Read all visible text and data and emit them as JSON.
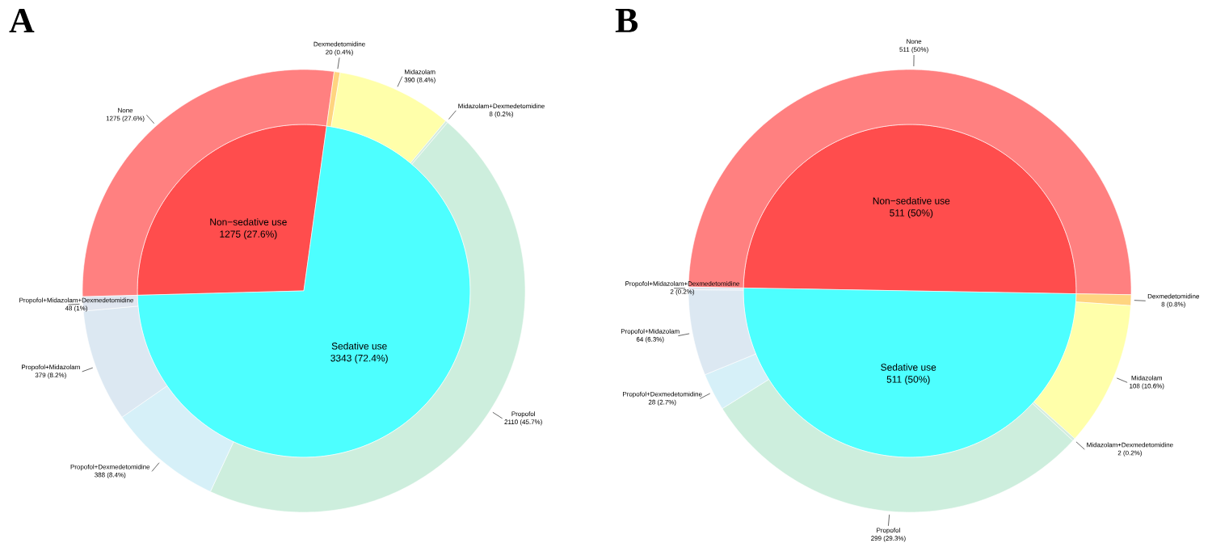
{
  "chart_data": [
    {
      "type": "pie",
      "categories": [
        "Non−sedative use",
        "Sedative use"
      ],
      "values": [
        1275,
        3343
      ],
      "colors": [
        "#ff4d4d",
        "#4dffff"
      ],
      "value_labels": [
        "1275 (27.6%)",
        "3343 (72.4%)"
      ]
    },
    {
      "type": "donut",
      "title": "A",
      "categories": [
        "None",
        "Dexmedetomidine",
        "Midazolam",
        "Midazolam+Dexmedetomidine",
        "Propofol",
        "Propofol+Dexmedetomidine",
        "Propofol+Midazolam",
        "Propofol+Midazolam+Dexmedetomidine"
      ],
      "values": [
        1275,
        20,
        390,
        8,
        2110,
        388,
        379,
        48
      ],
      "colors": [
        "#ff8080",
        "#ffd480",
        "#ffffaa",
        "#d4ecdf",
        "#cdeedd",
        "#d6f0f8",
        "#dce8f2",
        "#e0e6f0"
      ],
      "value_labels": [
        "1275 (27.6%)",
        "20 (0.4%)",
        "390 (8.4%)",
        "8 (0.2%)",
        "2110 (45.7%)",
        "388 (8.4%)",
        "379 (8.2%)",
        "48 (1%)"
      ]
    },
    {
      "type": "pie",
      "categories": [
        "Non−sedative use",
        "Sedative use"
      ],
      "values": [
        511,
        511
      ],
      "colors": [
        "#ff4d4d",
        "#4dffff"
      ],
      "value_labels": [
        "511 (50%)",
        "511 (50%)"
      ]
    },
    {
      "type": "donut",
      "title": "B",
      "categories": [
        "None",
        "Dexmedetomidine",
        "Midazolam",
        "Midazolam+Dexmedetomidine",
        "Propofol",
        "Propofol+Dexmedetomidine",
        "Propofol+Midazolam",
        "Propofol+Midazolam+Dexmedetomidine"
      ],
      "values": [
        511,
        8,
        108,
        2,
        299,
        28,
        64,
        2
      ],
      "colors": [
        "#ff8080",
        "#ffd480",
        "#ffffaa",
        "#d4ecdf",
        "#cdeedd",
        "#d6f0f8",
        "#dce8f2",
        "#e0e6f0"
      ],
      "value_labels": [
        "511 (50%)",
        "8 (0.8%)",
        "108 (10.6%)",
        "2 (0.2%)",
        "299 (29.3%)",
        "28 (2.7%)",
        "64 (6.3%)",
        "2 (0.2%)"
      ]
    }
  ]
}
